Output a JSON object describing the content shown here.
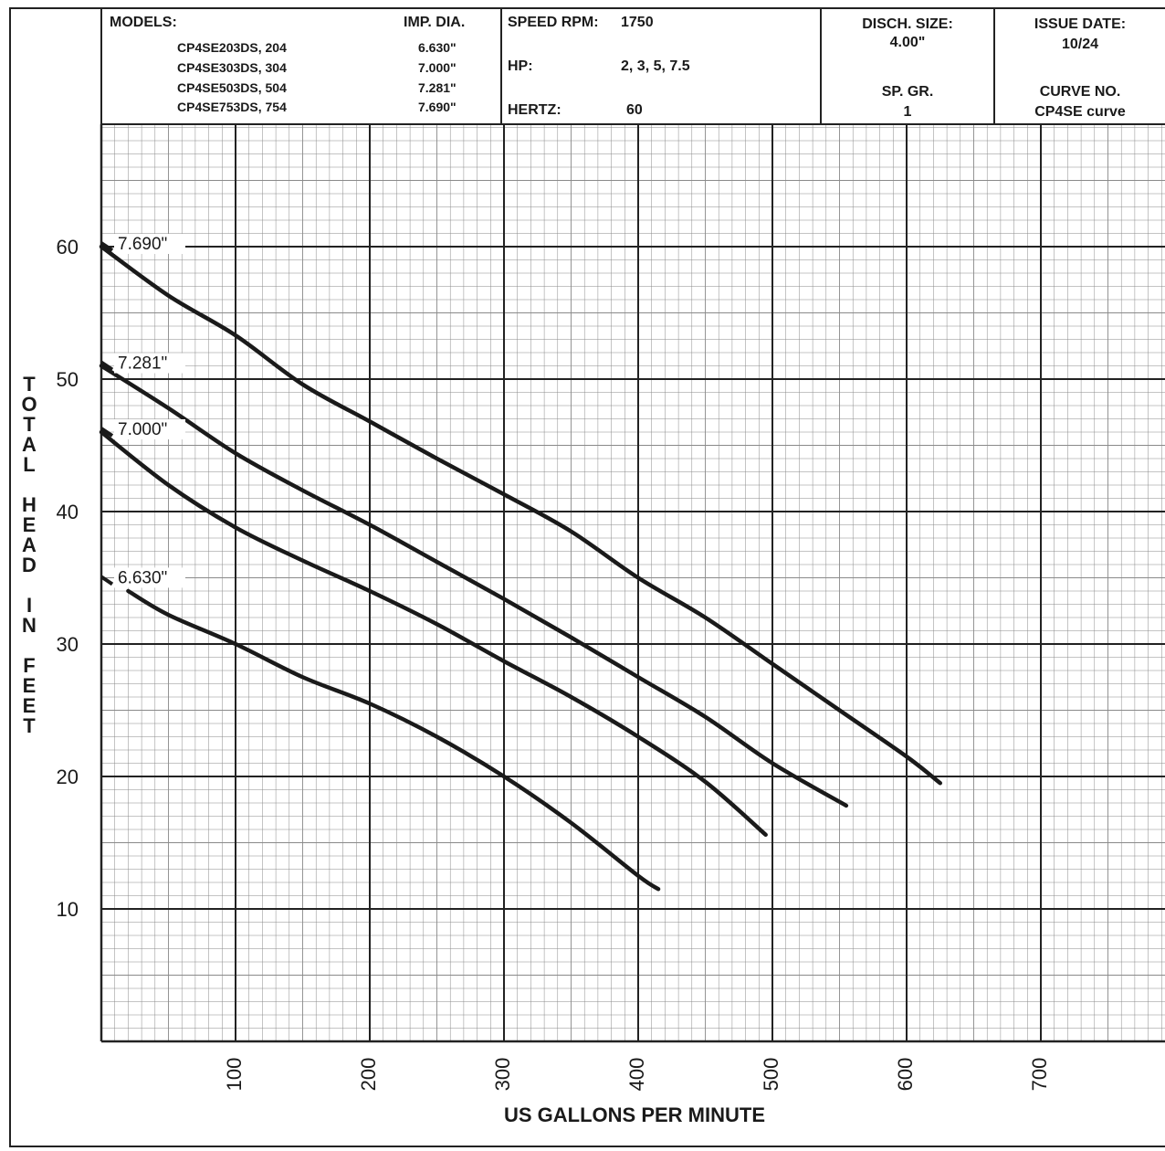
{
  "header": {
    "models_label": "MODELS:",
    "imp_dia_label": "IMP. DIA.",
    "models": [
      {
        "name": "CP4SE203DS, 204",
        "dia": "6.630\""
      },
      {
        "name": "CP4SE303DS, 304",
        "dia": "7.000\""
      },
      {
        "name": "CP4SE503DS, 504",
        "dia": "7.281\""
      },
      {
        "name": "CP4SE753DS, 754",
        "dia": "7.690\""
      }
    ],
    "speed_label": "SPEED RPM:",
    "speed_value": "1750",
    "hp_label": "HP:",
    "hp_value": "2, 3, 5, 7.5",
    "hertz_label": "HERTZ:",
    "hertz_value": "60",
    "disch_label": "DISCH. SIZE:",
    "disch_value": "4.00\"",
    "spgr_label": "SP. GR.",
    "spgr_value": "1",
    "issue_label": "ISSUE DATE:",
    "issue_value": "10/24",
    "curve_label": "CURVE NO.",
    "curve_value": "CP4SE curve"
  },
  "chart_data": {
    "type": "line",
    "xlabel": "US GALLONS PER MINUTE",
    "ylabel": "TOTAL HEAD IN FEET",
    "xlim": [
      0,
      800
    ],
    "ylim": [
      0,
      70
    ],
    "xticks": [
      100,
      200,
      300,
      400,
      500,
      600,
      700
    ],
    "yticks": [
      10,
      20,
      30,
      40,
      50,
      60
    ],
    "grid": true,
    "series": [
      {
        "name": "7.690\"",
        "x": [
          0,
          50,
          100,
          150,
          200,
          250,
          300,
          350,
          400,
          450,
          500,
          550,
          600,
          625
        ],
        "y": [
          60,
          56.3,
          53.3,
          49.6,
          46.8,
          44,
          41.3,
          38.5,
          35,
          32,
          28.5,
          25,
          21.5,
          19.5
        ]
      },
      {
        "name": "7.281\"",
        "x": [
          0,
          50,
          100,
          150,
          200,
          250,
          300,
          350,
          400,
          450,
          500,
          555
        ],
        "y": [
          51,
          47.8,
          44.4,
          41.6,
          39,
          36.2,
          33.4,
          30.5,
          27.5,
          24.5,
          21,
          17.8
        ]
      },
      {
        "name": "7.000\"",
        "x": [
          0,
          50,
          100,
          150,
          200,
          250,
          300,
          350,
          400,
          450,
          495
        ],
        "y": [
          46,
          42,
          38.8,
          36.3,
          34,
          31.5,
          28.7,
          26,
          23,
          19.6,
          15.6
        ]
      },
      {
        "name": "6.630\"",
        "x": [
          20,
          50,
          100,
          150,
          200,
          250,
          300,
          350,
          400,
          415
        ],
        "y": [
          34,
          32.2,
          30,
          27.5,
          25.5,
          23,
          20,
          16.5,
          12.5,
          11.5
        ]
      }
    ]
  }
}
